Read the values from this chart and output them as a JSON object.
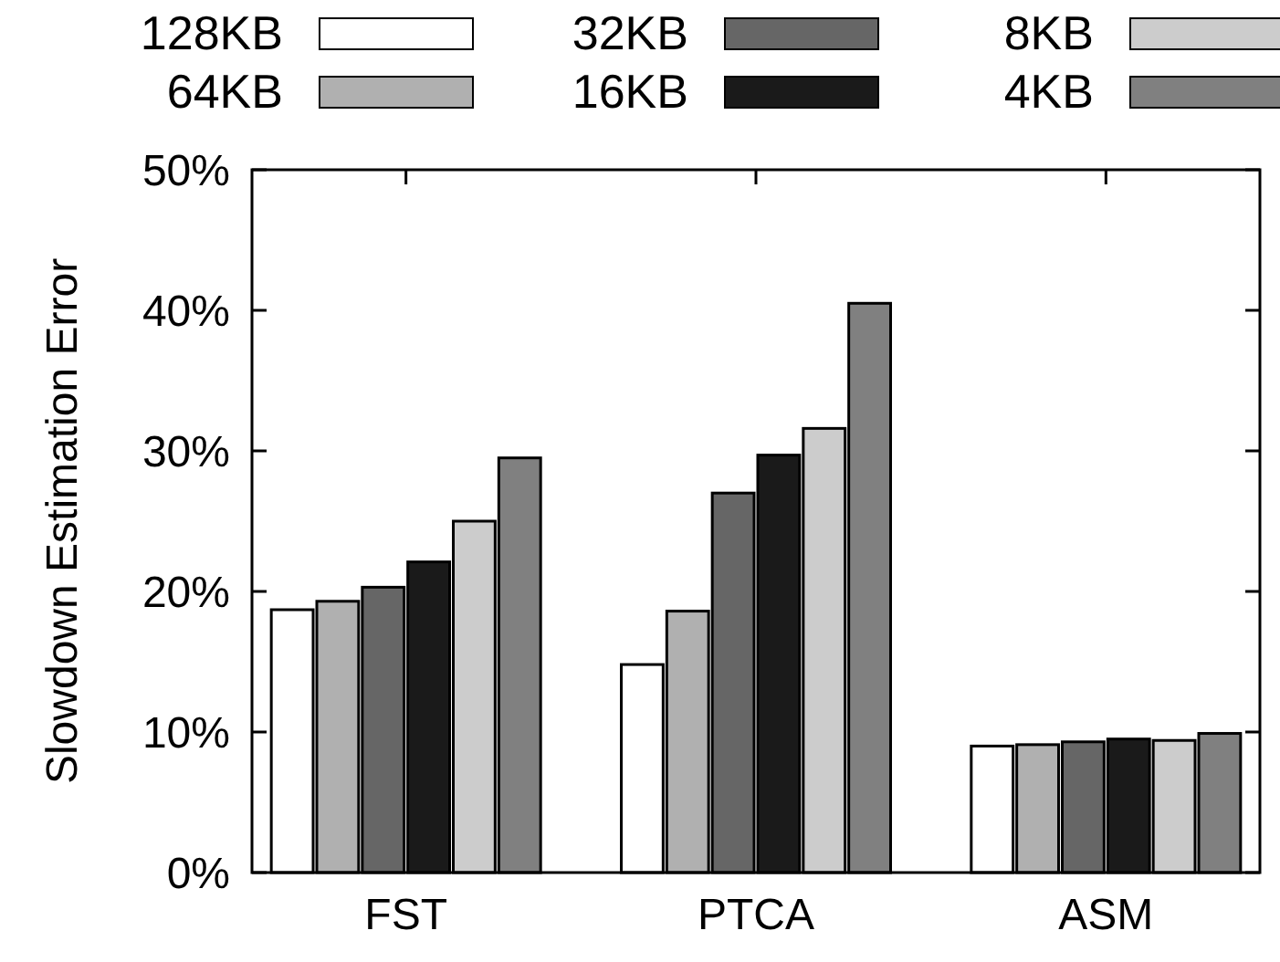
{
  "chart_data": {
    "type": "bar",
    "ylabel": "Slowdown Estimation Error",
    "categories": [
      "FST",
      "PTCA",
      "ASM"
    ],
    "ylim": [
      0,
      50
    ],
    "yticks": [
      {
        "value": 0,
        "label": "0%"
      },
      {
        "value": 10,
        "label": "10%"
      },
      {
        "value": 20,
        "label": "20%"
      },
      {
        "value": 30,
        "label": "30%"
      },
      {
        "value": 40,
        "label": "40%"
      },
      {
        "value": 50,
        "label": "50%"
      }
    ],
    "legend": "top",
    "grid": false,
    "series": [
      {
        "name": "128KB",
        "color": "#ffffff",
        "values": [
          18.7,
          14.8,
          9.0
        ]
      },
      {
        "name": "64KB",
        "color": "#b0b0b0",
        "values": [
          19.3,
          18.6,
          9.1
        ]
      },
      {
        "name": "32KB",
        "color": "#666666",
        "values": [
          20.3,
          27.0,
          9.3
        ]
      },
      {
        "name": "16KB",
        "color": "#1a1a1a",
        "values": [
          22.1,
          29.7,
          9.5
        ]
      },
      {
        "name": "8KB",
        "color": "#cccccc",
        "values": [
          25.0,
          31.6,
          9.4
        ]
      },
      {
        "name": "4KB",
        "color": "#808080",
        "values": [
          29.5,
          40.5,
          9.9
        ]
      }
    ]
  }
}
